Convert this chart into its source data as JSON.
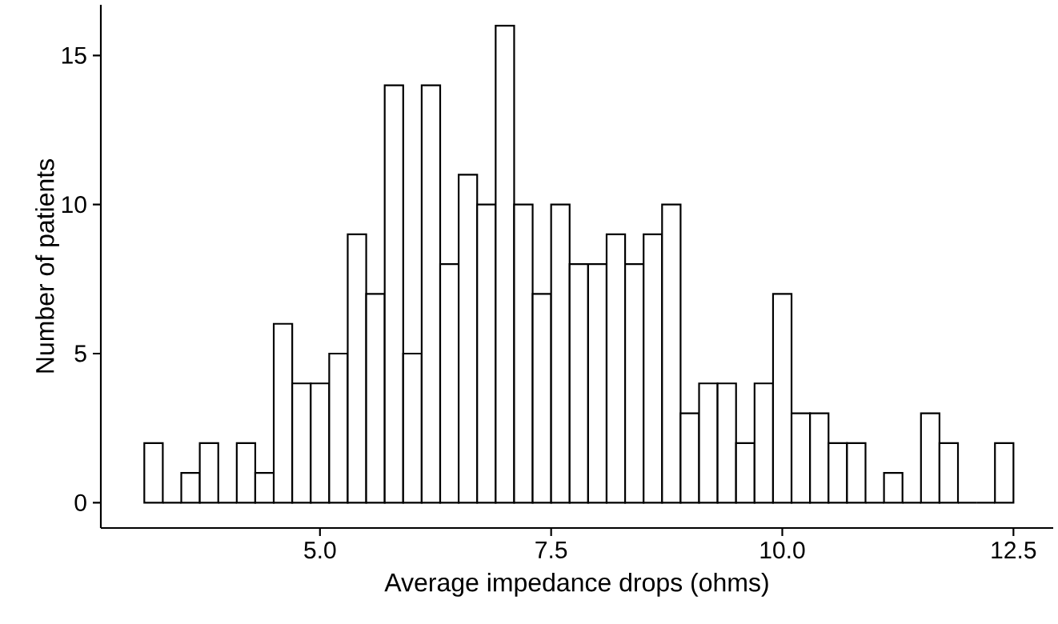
{
  "chart_data": {
    "type": "histogram",
    "xlabel": "Average impedance drops (ohms)",
    "ylabel": "Number of patients",
    "bins": [
      3.1,
      3.3,
      3.5,
      3.7,
      3.9,
      4.1,
      4.3,
      4.5,
      4.7,
      4.9,
      5.1,
      5.3,
      5.5,
      5.7,
      5.9,
      6.1,
      6.3,
      6.5,
      6.7,
      6.9,
      7.1,
      7.3,
      7.5,
      7.7,
      7.9,
      8.1,
      8.3,
      8.5,
      8.7,
      8.9,
      9.1,
      9.3,
      9.5,
      9.7,
      9.9,
      10.1,
      10.3,
      10.5,
      10.7,
      10.9,
      11.1,
      11.3,
      11.5,
      11.7,
      11.9,
      12.1,
      12.3,
      12.5
    ],
    "values": [
      2,
      0,
      1,
      2,
      0,
      2,
      1,
      6,
      4,
      4,
      5,
      9,
      7,
      14,
      5,
      14,
      8,
      11,
      10,
      16,
      10,
      7,
      10,
      8,
      8,
      9,
      8,
      9,
      10,
      3,
      4,
      4,
      2,
      4,
      7,
      3,
      3,
      2,
      2,
      0,
      1,
      0,
      3,
      2,
      0,
      0,
      2
    ],
    "xlim": [
      2.63,
      12.93
    ],
    "ylim": [
      -0.85,
      16.7
    ],
    "xticks": [
      {
        "value": 5,
        "label": "5.0"
      },
      {
        "value": 7.5,
        "label": "7.5"
      },
      {
        "value": 10,
        "label": "10.0"
      },
      {
        "value": 12.5,
        "label": "12.5"
      }
    ],
    "yticks": [
      0,
      5,
      10,
      15
    ],
    "grid": false
  }
}
